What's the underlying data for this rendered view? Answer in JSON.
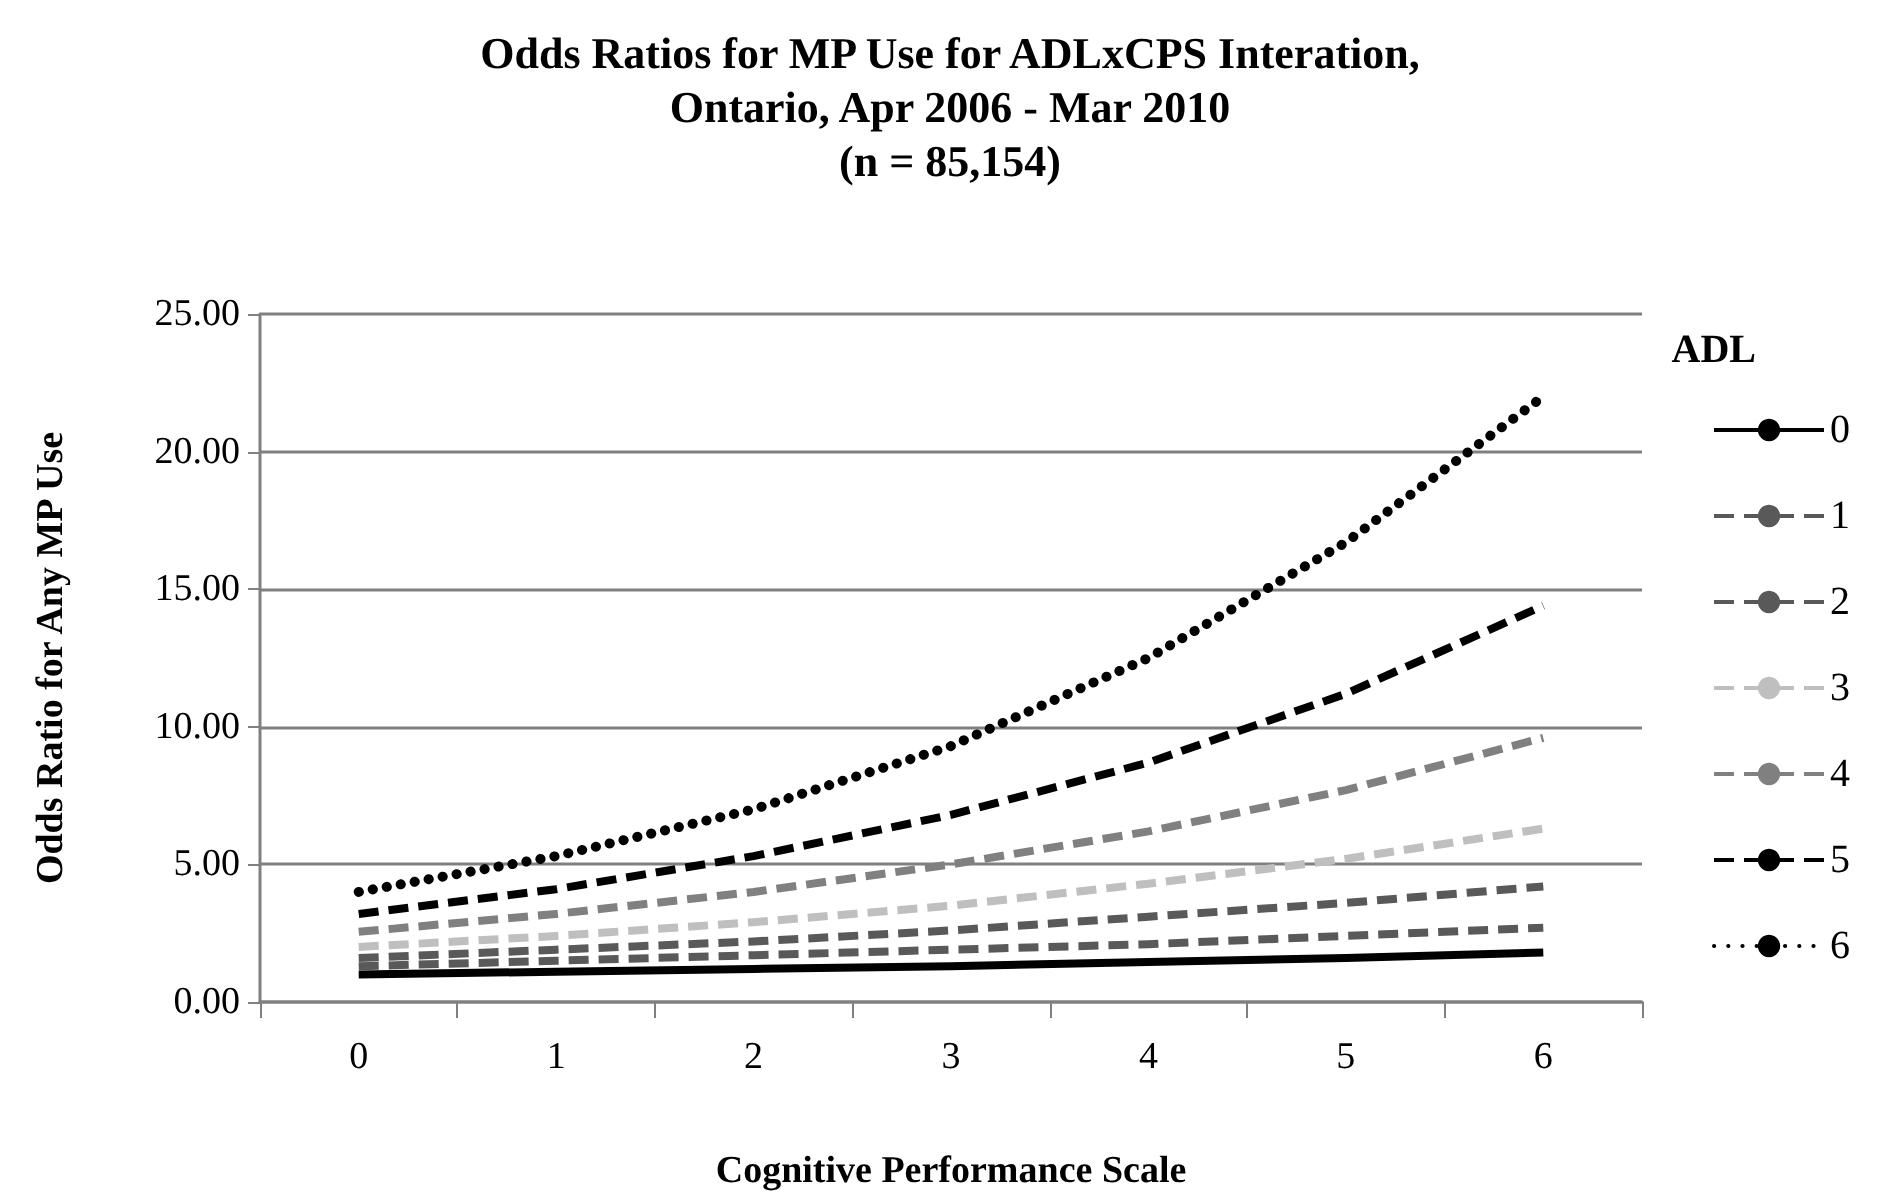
{
  "chart_data": {
    "type": "line",
    "title": "Odds Ratios for MP Use for ADLxCPS Interation,\nOntario, Apr 2006 - Mar 2010\n(n = 85,154)",
    "xlabel": "Cognitive Performance Scale",
    "ylabel": "Odds Ratio for Any MP Use",
    "legend_title": "ADL",
    "categories": [
      "0",
      "1",
      "2",
      "3",
      "4",
      "5",
      "6"
    ],
    "series": [
      {
        "name": "0",
        "color": "#000000",
        "line_style": "solid",
        "values": [
          1.0,
          1.1,
          1.2,
          1.3,
          1.45,
          1.6,
          1.8
        ]
      },
      {
        "name": "1",
        "color": "#595959",
        "line_style": "dashed",
        "values": [
          1.3,
          1.5,
          1.7,
          1.9,
          2.1,
          2.4,
          2.7
        ]
      },
      {
        "name": "2",
        "color": "#595959",
        "line_style": "dashed",
        "values": [
          1.6,
          1.9,
          2.2,
          2.6,
          3.1,
          3.6,
          4.2
        ]
      },
      {
        "name": "3",
        "color": "#bfbfbf",
        "line_style": "dashed",
        "values": [
          2.0,
          2.4,
          2.9,
          3.5,
          4.3,
          5.2,
          6.3
        ]
      },
      {
        "name": "4",
        "color": "#808080",
        "line_style": "dashed",
        "values": [
          2.55,
          3.2,
          4.0,
          5.0,
          6.2,
          7.7,
          9.6
        ]
      },
      {
        "name": "5",
        "color": "#000000",
        "line_style": "dashed",
        "values": [
          3.2,
          4.1,
          5.3,
          6.8,
          8.7,
          11.2,
          14.4
        ]
      },
      {
        "name": "6",
        "color": "#000000",
        "line_style": "dotted",
        "values": [
          4.0,
          5.3,
          7.0,
          9.3,
          12.5,
          16.7,
          22.0
        ]
      }
    ],
    "ylim": [
      0,
      25
    ],
    "yticks": [
      {
        "value": 0,
        "label": "0.00"
      },
      {
        "value": 5,
        "label": "5.00"
      },
      {
        "value": 10,
        "label": "10.00"
      },
      {
        "value": 15,
        "label": "15.00"
      },
      {
        "value": 20,
        "label": "20.00"
      },
      {
        "value": 25,
        "label": "25.00"
      }
    ],
    "grid": "y",
    "legend": "right",
    "marker": "none"
  }
}
